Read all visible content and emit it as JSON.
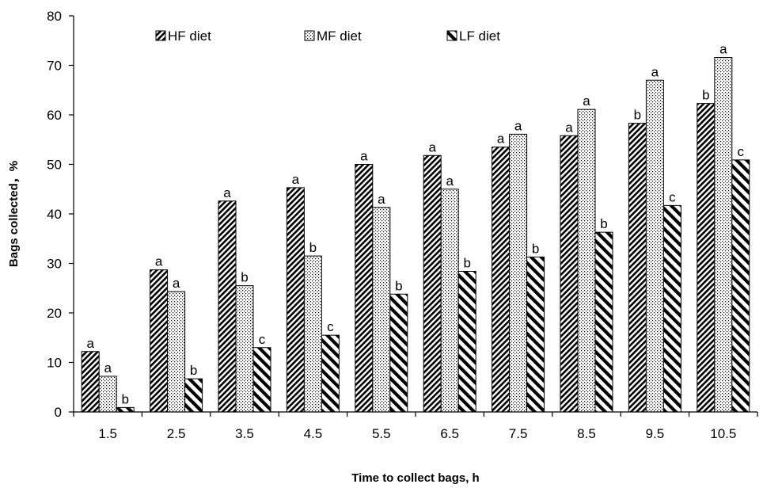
{
  "chart_data": {
    "type": "bar",
    "title": "",
    "xlabel": "Time to collect bags, h",
    "ylabel": "Bags collected，%",
    "ylim": [
      0,
      80
    ],
    "yticks": [
      0,
      10,
      20,
      30,
      40,
      50,
      60,
      70,
      80
    ],
    "grid": false,
    "legend_position": "top",
    "categories": [
      "1.5",
      "2.5",
      "3.5",
      "4.5",
      "5.5",
      "6.5",
      "7.5",
      "8.5",
      "9.5",
      "10.5"
    ],
    "series": [
      {
        "name": "HF diet",
        "pattern": "dense-diagonal-down",
        "values": [
          12.2,
          28.7,
          42.6,
          45.3,
          50.0,
          51.8,
          53.5,
          55.8,
          58.3,
          62.3
        ],
        "labels": [
          "a",
          "a",
          "a",
          "a",
          "a",
          "a",
          "a",
          "a",
          "b",
          "b"
        ]
      },
      {
        "name": "MF diet",
        "pattern": "dots",
        "values": [
          7.2,
          24.3,
          25.5,
          31.5,
          41.3,
          45.0,
          56.1,
          61.1,
          67.0,
          71.6
        ],
        "labels": [
          "a",
          "a",
          "b",
          "b",
          "a",
          "a",
          "a",
          "a",
          "a",
          "a"
        ]
      },
      {
        "name": "LF diet",
        "pattern": "wide-diagonal-up",
        "values": [
          0.9,
          6.7,
          13.0,
          15.5,
          23.8,
          28.4,
          31.3,
          36.3,
          41.7,
          50.9
        ],
        "labels": [
          "b",
          "b",
          "c",
          "c",
          "b",
          "b",
          "b",
          "b",
          "c",
          "c"
        ]
      }
    ],
    "colors": {
      "stroke": "#000000",
      "fill": "#ffffff"
    }
  }
}
